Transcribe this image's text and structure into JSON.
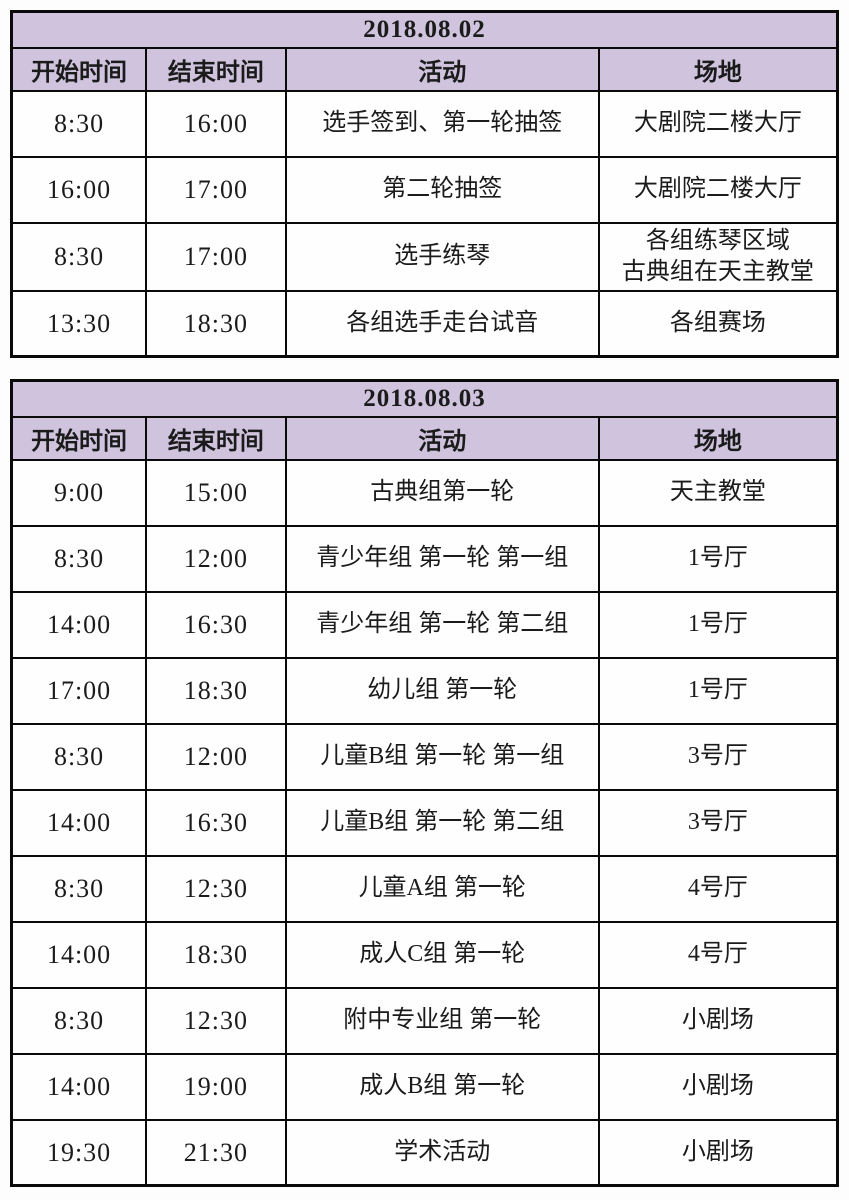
{
  "colors": {
    "header_background": "#cfc3de",
    "border": "#0a0a0a",
    "text": "#1b1b1b",
    "page_background": "#fdfdfd"
  },
  "tables": [
    {
      "title": "2018.08.02",
      "columns": [
        "开始时间",
        "结束时间",
        "活动",
        "场地"
      ],
      "rows": [
        {
          "start": "8:30",
          "end": "16:00",
          "activity": "选手签到、第一轮抽签",
          "venue": "大剧院二楼大厅"
        },
        {
          "start": "16:00",
          "end": "17:00",
          "activity": "第二轮抽签",
          "venue": "大剧院二楼大厅"
        },
        {
          "start": "8:30",
          "end": "17:00",
          "activity": "选手练琴",
          "venue": "各组练琴区域\n古典组在天主教堂"
        },
        {
          "start": "13:30",
          "end": "18:30",
          "activity": "各组选手走台试音",
          "venue": "各组赛场"
        }
      ]
    },
    {
      "title": "2018.08.03",
      "columns": [
        "开始时间",
        "结束时间",
        "活动",
        "场地"
      ],
      "rows": [
        {
          "start": "9:00",
          "end": "15:00",
          "activity": "古典组第一轮",
          "venue": "天主教堂"
        },
        {
          "start": "8:30",
          "end": "12:00",
          "activity": "青少年组 第一轮 第一组",
          "venue": "1号厅"
        },
        {
          "start": "14:00",
          "end": "16:30",
          "activity": "青少年组 第一轮 第二组",
          "venue": "1号厅"
        },
        {
          "start": "17:00",
          "end": "18:30",
          "activity": "幼儿组 第一轮",
          "venue": "1号厅"
        },
        {
          "start": "8:30",
          "end": "12:00",
          "activity": "儿童B组 第一轮 第一组",
          "venue": "3号厅"
        },
        {
          "start": "14:00",
          "end": "16:30",
          "activity": "儿童B组 第一轮 第二组",
          "venue": "3号厅"
        },
        {
          "start": "8:30",
          "end": "12:30",
          "activity": "儿童A组 第一轮",
          "venue": "4号厅"
        },
        {
          "start": "14:00",
          "end": "18:30",
          "activity": "成人C组 第一轮",
          "venue": "4号厅"
        },
        {
          "start": "8:30",
          "end": "12:30",
          "activity": "附中专业组 第一轮",
          "venue": "小剧场"
        },
        {
          "start": "14:00",
          "end": "19:00",
          "activity": "成人B组 第一轮",
          "venue": "小剧场"
        },
        {
          "start": "19:30",
          "end": "21:30",
          "activity": "学术活动",
          "venue": "小剧场"
        }
      ]
    }
  ]
}
